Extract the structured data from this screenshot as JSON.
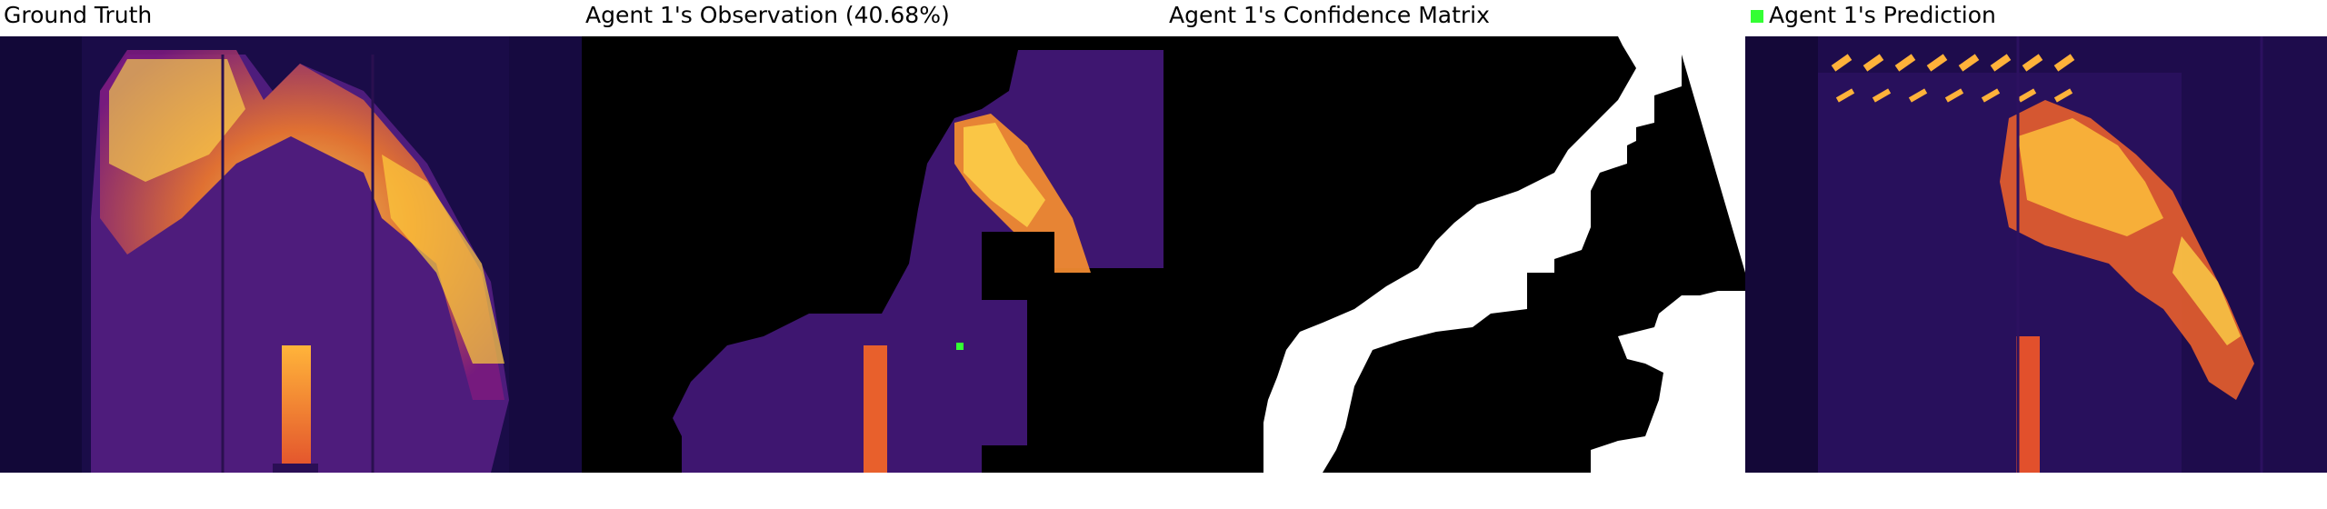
{
  "panels": [
    {
      "title": "Ground Truth"
    },
    {
      "title": "Agent 1's Observation (40.68%)"
    },
    {
      "title": "Agent 1's Confidence Matrix"
    },
    {
      "title": "Agent 1's Prediction"
    }
  ],
  "colors": {
    "background_dark": "#14093a",
    "mid_purple": "#4b1a7a",
    "magenta": "#8e1f8a",
    "hot_orange": "#e7622a",
    "hot_yellow": "#ffd23a",
    "mask_black": "#000000",
    "mask_white": "#ffffff",
    "marker_green": "#33ff33"
  },
  "icons": {
    "prediction_legend": "green-square-icon",
    "observation_marker": "green-square-icon"
  }
}
